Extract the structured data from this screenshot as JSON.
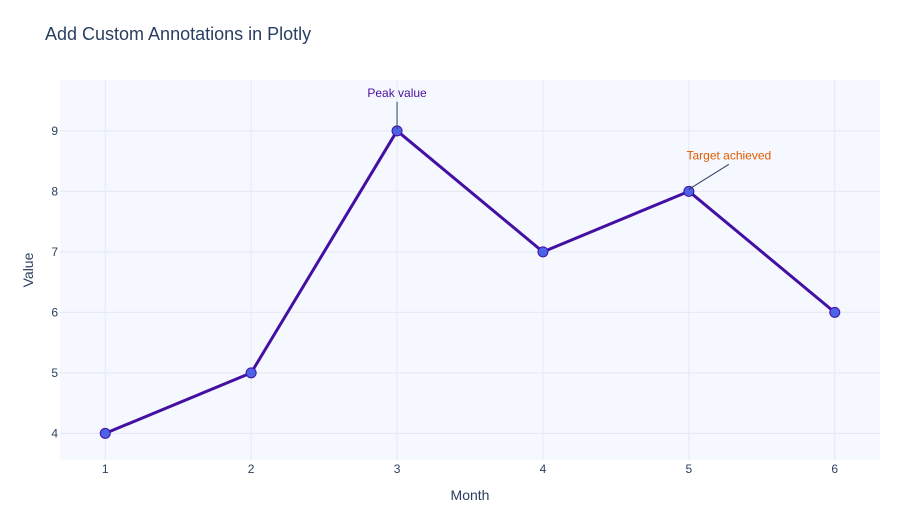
{
  "chart_data": {
    "type": "line",
    "title": "Add Custom Annotations in Plotly",
    "xlabel": "Month",
    "ylabel": "Value",
    "x": [
      1,
      2,
      3,
      4,
      5,
      6
    ],
    "series": [
      {
        "values": [
          4,
          5,
          9,
          7,
          8,
          6
        ]
      }
    ],
    "xticks": [
      "1",
      "2",
      "3",
      "4",
      "5",
      "6"
    ],
    "yticks": [
      "4",
      "5",
      "6",
      "7",
      "8",
      "9"
    ],
    "xlim": [
      0.69,
      6.31
    ],
    "ylim": [
      3.56,
      9.84
    ],
    "grid": true,
    "annotations": [
      {
        "text": "Peak value",
        "x": 3,
        "y": 9,
        "color": "#4b0f9e"
      },
      {
        "text": "Target achieved",
        "x": 5,
        "y": 8,
        "color": "#e05a00"
      }
    ],
    "colors": {
      "line": "#4410a3",
      "marker": "#4b63e6",
      "plot_bg": "#f5f8fe",
      "grid": "#e4e9f2",
      "text": "#2a3f5f"
    }
  }
}
